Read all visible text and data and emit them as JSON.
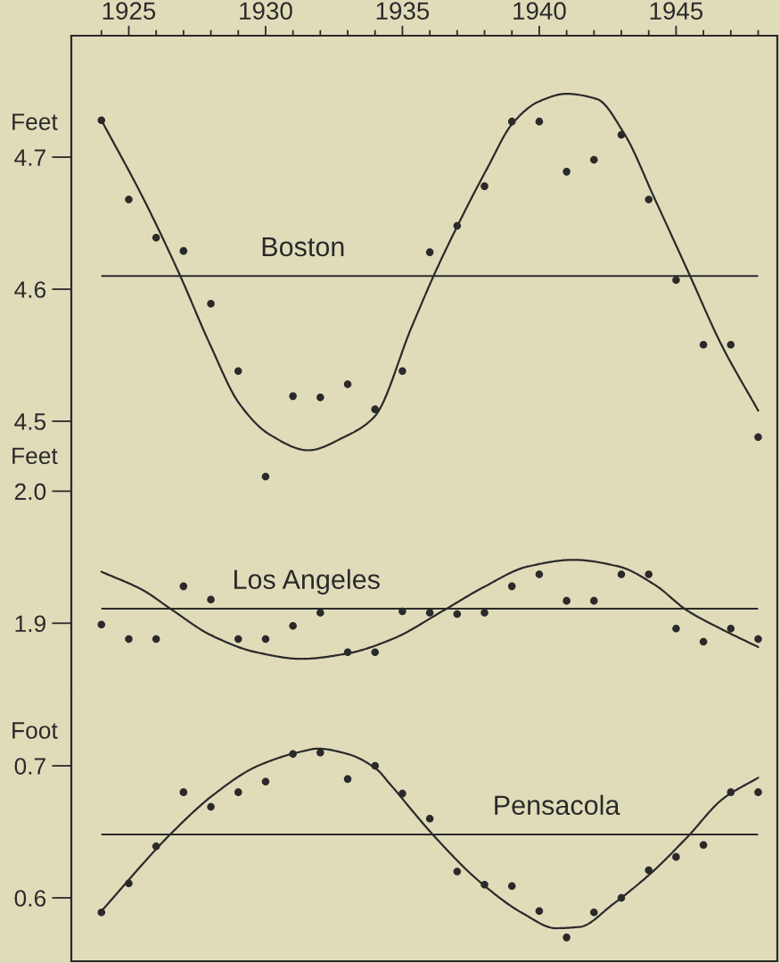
{
  "chart_data": [
    {
      "type": "scatter",
      "ylabel": "Feet",
      "x": [
        1924,
        1925,
        1926,
        1927,
        1928,
        1929,
        1930,
        1931,
        1932,
        1933,
        1934,
        1935,
        1936,
        1937,
        1938,
        1939,
        1940,
        1941,
        1942,
        1943,
        1944,
        1945,
        1946,
        1947,
        1948
      ],
      "xlim": [
        1922.9,
        1948.7
      ],
      "xticks": [
        {
          "value": 1924,
          "label": null
        },
        1925,
        {
          "value": 1926,
          "label": null
        },
        {
          "value": 1927,
          "label": null
        },
        {
          "value": 1928,
          "label": null
        },
        {
          "value": 1929,
          "label": null
        },
        1930,
        {
          "value": 1931,
          "label": null
        },
        {
          "value": 1932,
          "label": null
        },
        {
          "value": 1933,
          "label": null
        },
        {
          "value": 1934,
          "label": null
        },
        1935,
        {
          "value": 1936,
          "label": null
        },
        {
          "value": 1937,
          "label": null
        },
        {
          "value": 1938,
          "label": null
        },
        {
          "value": 1939,
          "label": null
        },
        1940,
        {
          "value": 1941,
          "label": null
        },
        {
          "value": 1942,
          "label": null
        },
        {
          "value": 1943,
          "label": null
        },
        {
          "value": 1944,
          "label": null
        },
        1945,
        {
          "value": 1946,
          "label": null
        },
        {
          "value": 1947,
          "label": null
        },
        {
          "value": 1948,
          "label": null
        }
      ],
      "ylim": [
        4.452,
        4.792
      ],
      "yticks": [
        4.5,
        4.6,
        4.7
      ],
      "series": [
        {
          "marker": "circle",
          "color": "#2a2a2a",
          "values": [
            4.728,
            4.668,
            4.639,
            4.629,
            4.589,
            4.538,
            4.458,
            4.519,
            4.518,
            4.528,
            4.509,
            4.538,
            4.628,
            4.648,
            4.678,
            4.727,
            4.727,
            4.689,
            4.698,
            4.717,
            4.668,
            4.607,
            4.558,
            4.558,
            4.488
          ]
        },
        {
          "type": "line",
          "line_style": "solid",
          "color": "#2a2a2a",
          "x": [
            1924.0,
            1925.55,
            1926.86,
            1927.95,
            1929.05,
            1930.14,
            1931.56,
            1932.87,
            1933.96,
            1935.33,
            1936.16,
            1937.18,
            1938.11,
            1939.04,
            1939.97,
            1940.99,
            1942.11,
            1943.1,
            1944.23,
            1945.49,
            1946.63,
            1948.0
          ],
          "values": [
            4.728,
            4.668,
            4.611,
            4.559,
            4.513,
            4.49,
            4.478,
            4.488,
            4.503,
            4.571,
            4.611,
            4.655,
            4.692,
            4.726,
            4.742,
            4.748,
            4.744,
            4.718,
            4.668,
            4.611,
            4.559,
            4.508
          ]
        }
      ],
      "ref_lines": [
        {
          "axis": "y",
          "value": 4.61,
          "label": "Boston",
          "color": "#2a2a2a"
        }
      ]
    },
    {
      "type": "scatter",
      "ylabel": "Feet",
      "tick_labels": "y",
      "x": [
        1924,
        1925,
        1926,
        1927,
        1928,
        1929,
        1930,
        1931,
        1932,
        1933,
        1934,
        1935,
        1936,
        1937,
        1938,
        1939,
        1940,
        1941,
        1942,
        1943,
        1944,
        1945,
        1946,
        1947,
        1948
      ],
      "xlim": [
        1922.9,
        1948.7
      ],
      "ylim": [
        1.85,
        2.005
      ],
      "yticks": [
        1.9,
        {
          "value": 2,
          "label": "2.0"
        }
      ],
      "series": [
        {
          "marker": "circle",
          "color": "#2a2a2a",
          "values": [
            1.899,
            1.888,
            1.888,
            1.928,
            1.918,
            1.888,
            1.888,
            1.898,
            1.908,
            1.878,
            1.878,
            1.909,
            1.908,
            1.907,
            1.908,
            1.928,
            1.937,
            1.917,
            1.917,
            1.937,
            1.937,
            1.896,
            1.886,
            1.896,
            1.888
          ]
        },
        {
          "type": "line",
          "line_style": "solid",
          "color": "#2a2a2a",
          "x": [
            1924.0,
            1925.52,
            1926.52,
            1928.0,
            1929.66,
            1931.31,
            1932.97,
            1934.63,
            1936.53,
            1937.94,
            1939.59,
            1941.25,
            1942.9,
            1944.23,
            1945.38,
            1946.71,
            1948.0
          ],
          "values": [
            1.939,
            1.925,
            1.911,
            1.891,
            1.878,
            1.873,
            1.877,
            1.888,
            1.91,
            1.927,
            1.943,
            1.948,
            1.943,
            1.929,
            1.91,
            1.895,
            1.882
          ]
        }
      ],
      "ref_lines": [
        {
          "axis": "y",
          "value": 1.911,
          "label": "Los Angeles",
          "color": "#2a2a2a"
        }
      ]
    },
    {
      "type": "scatter",
      "ylabel": "Foot",
      "tick_labels": "y",
      "x": [
        1924,
        1925,
        1926,
        1927,
        1928,
        1929,
        1930,
        1931,
        1932,
        1933,
        1934,
        1935,
        1936,
        1937,
        1938,
        1939,
        1940,
        1941,
        1942,
        1943,
        1944,
        1945,
        1946,
        1947,
        1948
      ],
      "xlim": [
        1922.9,
        1948.7
      ],
      "ylim": [
        0.552,
        0.758
      ],
      "yticks": [
        0.6,
        0.7
      ],
      "series": [
        {
          "marker": "circle",
          "color": "#2a2a2a",
          "values": [
            0.589,
            0.611,
            0.639,
            0.68,
            0.669,
            0.68,
            0.688,
            0.709,
            0.71,
            0.69,
            0.7,
            0.679,
            0.66,
            0.62,
            0.61,
            0.609,
            0.59,
            0.57,
            0.589,
            0.6,
            0.621,
            0.631,
            0.64,
            0.68,
            0.68
          ]
        },
        {
          "type": "line",
          "line_style": "solid",
          "color": "#2a2a2a",
          "x": [
            1924.0,
            1926.56,
            1928.09,
            1929.72,
            1931.35,
            1931.9,
            1932.99,
            1934.08,
            1934.51,
            1936.15,
            1937.78,
            1939.42,
            1940.61,
            1941.48,
            1942.68,
            1944.1,
            1945.41,
            1946.71,
            1948.0
          ],
          "values": [
            0.59,
            0.649,
            0.678,
            0.7,
            0.711,
            0.713,
            0.709,
            0.697,
            0.687,
            0.647,
            0.613,
            0.588,
            0.577,
            0.578,
            0.595,
            0.619,
            0.646,
            0.675,
            0.691
          ]
        }
      ],
      "ref_lines": [
        {
          "axis": "y",
          "value": 0.648,
          "label": "Pensacola",
          "color": "#2a2a2a"
        }
      ]
    }
  ]
}
